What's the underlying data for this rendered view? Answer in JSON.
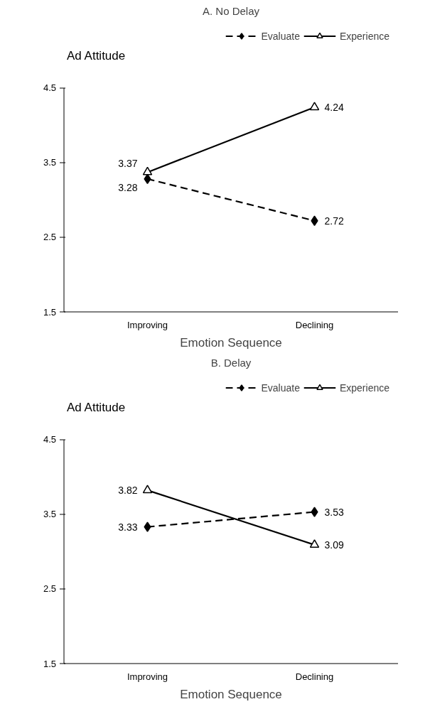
{
  "chart_data": [
    {
      "type": "line",
      "title": "A. No Delay",
      "xlabel": "Emotion Sequence",
      "ylabel": "Ad Attitude",
      "categories": [
        "Improving",
        "Declining"
      ],
      "ylim": [
        1.5,
        4.5
      ],
      "yticks": [
        1.5,
        2.5,
        3.5,
        4.5
      ],
      "grid": false,
      "legend": "top right",
      "data_labels": true,
      "series": [
        {
          "name": "Evaluate",
          "color": "#000000",
          "values": [
            3.28,
            2.72
          ],
          "marker": "diamond",
          "line_style": "dashed"
        },
        {
          "name": "Experience",
          "color": "#000000",
          "values": [
            3.37,
            4.24
          ],
          "marker": "triangle",
          "line_style": "solid"
        }
      ]
    },
    {
      "type": "line",
      "title": "B. Delay",
      "xlabel": "Emotion Sequence",
      "ylabel": "Ad Attitude",
      "categories": [
        "Improving",
        "Declining"
      ],
      "ylim": [
        1.5,
        4.5
      ],
      "yticks": [
        1.5,
        2.5,
        3.5,
        4.5
      ],
      "grid": false,
      "legend": "top right",
      "data_labels": true,
      "series": [
        {
          "name": "Evaluate",
          "color": "#000000",
          "values": [
            3.33,
            3.53
          ],
          "marker": "diamond",
          "line_style": "dashed"
        },
        {
          "name": "Experience",
          "color": "#000000",
          "values": [
            3.82,
            3.09
          ],
          "marker": "triangle",
          "line_style": "solid"
        }
      ]
    }
  ]
}
